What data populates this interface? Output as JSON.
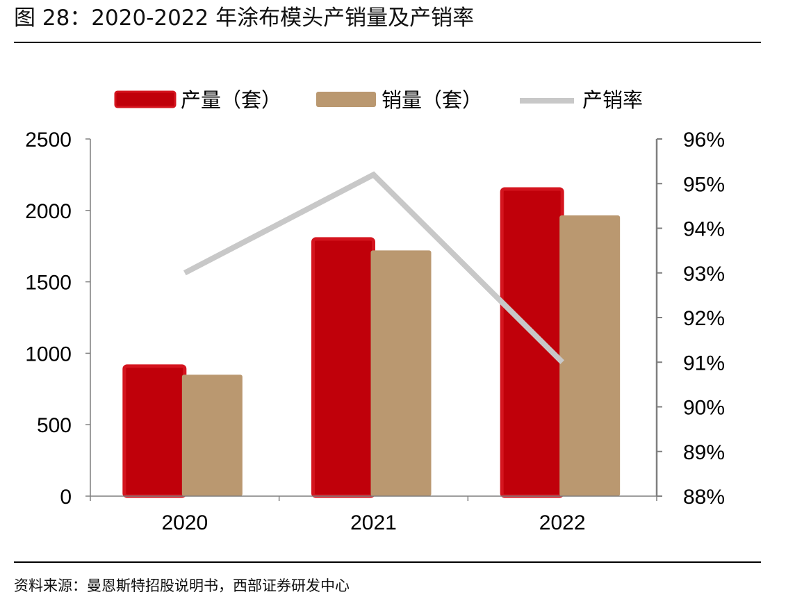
{
  "figure": {
    "title": "图 28：2020-2022 年涂布模头产销量及产销率",
    "source": "资料来源：曼恩斯特招股说明书，西部证券研发中心"
  },
  "colors": {
    "production": "#C0000A",
    "production_border": "#D4141E",
    "sales": "#BA9870",
    "rate": "#C8C8C8",
    "axis": "#7F7F7F"
  },
  "chart_data": {
    "type": "bar",
    "categories": [
      "2020",
      "2021",
      "2022"
    ],
    "series": [
      {
        "name": "产量（套）",
        "type": "bar",
        "axis": "left",
        "values": [
          910,
          1800,
          2150
        ]
      },
      {
        "name": "销量（套）",
        "type": "bar",
        "axis": "left",
        "values": [
          850,
          1720,
          1965
        ]
      },
      {
        "name": "产销率",
        "type": "line",
        "axis": "right",
        "values": [
          93.0,
          95.2,
          91.0
        ]
      }
    ],
    "y_left": {
      "lim": [
        0,
        2500
      ],
      "ticks": [
        0,
        500,
        1000,
        1500,
        2000,
        2500
      ],
      "tick_labels": [
        "0",
        "500",
        "1000",
        "1500",
        "2000",
        "2500"
      ]
    },
    "y_right": {
      "lim": [
        88,
        96
      ],
      "ticks": [
        88,
        89,
        90,
        91,
        92,
        93,
        94,
        95,
        96
      ],
      "tick_labels": [
        "88%",
        "89%",
        "90%",
        "91%",
        "92%",
        "93%",
        "94%",
        "95%",
        "96%"
      ]
    },
    "legend_position": "top",
    "grid": false
  }
}
